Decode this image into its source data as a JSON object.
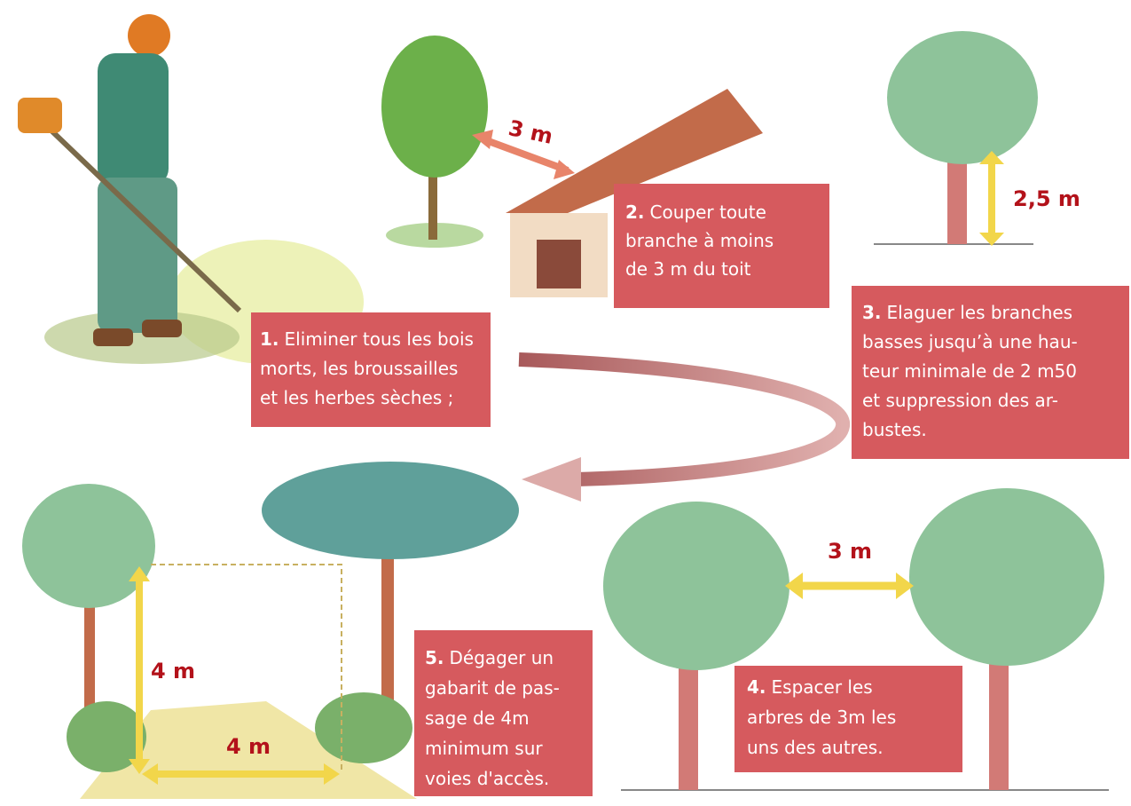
{
  "steps": [
    {
      "number": "1.",
      "lines": [
        "Eliminer tous les bois",
        "morts, les broussailles",
        "et les herbes sèches ;"
      ]
    },
    {
      "number": "2.",
      "lines": [
        "Couper toute",
        "branche à moins",
        "de 3 m du toit"
      ]
    },
    {
      "number": "3.",
      "lines": [
        "Elaguer les branches",
        "basses jusqu’à une hau-",
        "teur minimale de 2 m50",
        "et suppression des ar-",
        "bustes."
      ]
    },
    {
      "number": "4.",
      "lines": [
        "Espacer les",
        "arbres de 3m les",
        "uns des autres."
      ]
    },
    {
      "number": "5.",
      "lines": [
        "Dégager un",
        "gabarit de pas-",
        "sage de 4m",
        "minimum sur",
        "voies d'accès."
      ]
    }
  ],
  "dimensions": [
    "3 m",
    "2,5 m",
    "3 m",
    "4 m",
    "4 m"
  ]
}
